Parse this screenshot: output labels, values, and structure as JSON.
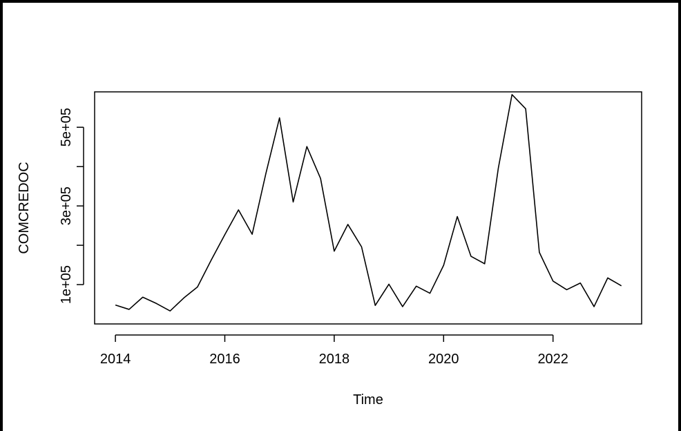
{
  "chart_data": {
    "type": "line",
    "title": "",
    "xlabel": "Time",
    "ylabel": "COMCREDOC",
    "xlim": [
      2013.62,
      2023.62
    ],
    "ylim": [
      0,
      590000
    ],
    "x_ticks": [
      2014,
      2016,
      2018,
      2020,
      2022
    ],
    "x_tick_labels": [
      "2014",
      "2016",
      "2018",
      "2020",
      "2022"
    ],
    "y_ticks": [
      100000,
      200000,
      300000,
      400000,
      500000
    ],
    "y_tick_labels": [
      "1e+05",
      "",
      "3e+05",
      "",
      "5e+05"
    ],
    "grid": false,
    "legend": "none",
    "line_color": "#000000",
    "series": [
      {
        "x": [
          2014.0,
          2014.25,
          2014.5,
          2014.75,
          2015.0,
          2015.25,
          2015.5,
          2015.75,
          2016.0,
          2016.25,
          2016.5,
          2016.75,
          2017.0,
          2017.25,
          2017.5,
          2017.75,
          2018.0,
          2018.25,
          2018.5,
          2018.75,
          2019.0,
          2019.25,
          2019.5,
          2019.75,
          2020.0,
          2020.25,
          2020.5,
          2020.75,
          2021.0,
          2021.25,
          2021.5,
          2021.75,
          2022.0,
          2022.25,
          2022.5,
          2022.75,
          2023.0,
          2023.25
        ],
        "y": [
          48000,
          37000,
          68000,
          52000,
          33000,
          66000,
          94000,
          162000,
          227000,
          290000,
          228000,
          382000,
          524000,
          310000,
          451000,
          370000,
          185000,
          253000,
          196000,
          47000,
          101000,
          44000,
          96000,
          78000,
          149000,
          273000,
          172000,
          153000,
          396000,
          583000,
          547000,
          182000,
          109000,
          87000,
          104000,
          44000,
          117000,
          97000
        ]
      }
    ]
  }
}
